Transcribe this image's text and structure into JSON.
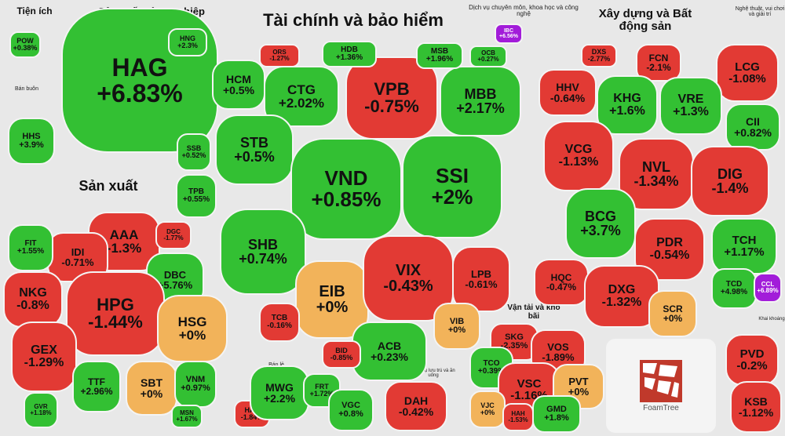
{
  "colors": {
    "green": "#33c033",
    "red": "#e23a34",
    "orange": "#f2b35a",
    "purple": "#a21cd9",
    "blue": "#3a9be0"
  },
  "sectors": [
    {
      "id": "tien-ich",
      "label": "Tiện ích"
    },
    {
      "id": "san-xuat-nong-nghiep",
      "label": "Sản xuất nông nghiệp"
    },
    {
      "id": "tai-chinh",
      "label": "Tài chính và bảo hiểm"
    },
    {
      "id": "dich-vu",
      "label": "Dịch vụ chuyên môn, khoa học và công nghệ"
    },
    {
      "id": "xay-dung",
      "label": "Xây dựng và Bất động sản"
    },
    {
      "id": "nghe-thuat",
      "label": "Nghệ thuật, vui chơi và giải trí"
    },
    {
      "id": "ban-buon",
      "label": "Bán buôn"
    },
    {
      "id": "san-xuat",
      "label": "Sản xuất"
    },
    {
      "id": "van-tai",
      "label": "Vận tải và kho bãi"
    },
    {
      "id": "ban-le",
      "label": "Bán lẻ"
    },
    {
      "id": "dich-vu-luu-tru",
      "label": "Dịch vụ lưu trú và ăn uống"
    },
    {
      "id": "khai-khoang",
      "label": "Khai khoáng"
    }
  ],
  "tickers": [
    {
      "t": "HAG",
      "p": "+6.83%",
      "c": "green"
    },
    {
      "t": "POW",
      "p": "+0.38%",
      "c": "green"
    },
    {
      "t": "HNG",
      "p": "+2.3%",
      "c": "green"
    },
    {
      "t": "HHS",
      "p": "+3.9%",
      "c": "green"
    },
    {
      "t": "HCM",
      "p": "+0.5%",
      "c": "green"
    },
    {
      "t": "CTG",
      "p": "+2.02%",
      "c": "green"
    },
    {
      "t": "VPB",
      "p": "-0.75%",
      "c": "red"
    },
    {
      "t": "MBB",
      "p": "+2.17%",
      "c": "green"
    },
    {
      "t": "HDB",
      "p": "+1.36%",
      "c": "green"
    },
    {
      "t": "MSB",
      "p": "+1.96%",
      "c": "green"
    },
    {
      "t": "ORS",
      "p": "-1.27%",
      "c": "red"
    },
    {
      "t": "OCB",
      "p": "+0.27%",
      "c": "green"
    },
    {
      "t": "STB",
      "p": "+0.5%",
      "c": "green"
    },
    {
      "t": "SSB",
      "p": "+0.52%",
      "c": "green"
    },
    {
      "t": "TPB",
      "p": "+0.55%",
      "c": "green"
    },
    {
      "t": "VND",
      "p": "+0.85%",
      "c": "green"
    },
    {
      "t": "SSI",
      "p": "+2%",
      "c": "green"
    },
    {
      "t": "SHB",
      "p": "+0.74%",
      "c": "green"
    },
    {
      "t": "EIB",
      "p": "+0%",
      "c": "orange"
    },
    {
      "t": "VIX",
      "p": "-0.43%",
      "c": "red"
    },
    {
      "t": "LPB",
      "p": "-0.61%",
      "c": "red"
    },
    {
      "t": "VIB",
      "p": "+0%",
      "c": "orange"
    },
    {
      "t": "TCB",
      "p": "-0.16%",
      "c": "red"
    },
    {
      "t": "ACB",
      "p": "+0.23%",
      "c": "green"
    },
    {
      "t": "BID",
      "p": "-0.85%",
      "c": "red"
    },
    {
      "t": "IBC",
      "p": "+6.56%",
      "c": "purple"
    },
    {
      "t": "DXS",
      "p": "-2.77%",
      "c": "red"
    },
    {
      "t": "FCN",
      "p": "-2.1%",
      "c": "red"
    },
    {
      "t": "LCG",
      "p": "-1.08%",
      "c": "red"
    },
    {
      "t": "HHV",
      "p": "-0.64%",
      "c": "red"
    },
    {
      "t": "KHG",
      "p": "+1.6%",
      "c": "green"
    },
    {
      "t": "VRE",
      "p": "+1.3%",
      "c": "green"
    },
    {
      "t": "CII",
      "p": "+0.82%",
      "c": "green"
    },
    {
      "t": "VCG",
      "p": "-1.13%",
      "c": "red"
    },
    {
      "t": "NVL",
      "p": "-1.34%",
      "c": "red"
    },
    {
      "t": "DIG",
      "p": "-1.4%",
      "c": "red"
    },
    {
      "t": "BCG",
      "p": "+3.7%",
      "c": "green"
    },
    {
      "t": "PDR",
      "p": "-0.54%",
      "c": "red"
    },
    {
      "t": "TCH",
      "p": "+1.17%",
      "c": "green"
    },
    {
      "t": "HQC",
      "p": "-0.47%",
      "c": "red"
    },
    {
      "t": "DXG",
      "p": "-1.32%",
      "c": "red"
    },
    {
      "t": "SCR",
      "p": "+0%",
      "c": "orange"
    },
    {
      "t": "TCD",
      "p": "+4.98%",
      "c": "green"
    },
    {
      "t": "CCL",
      "p": "+6.89%",
      "c": "purple"
    },
    {
      "t": "AAA",
      "p": "-1.3%",
      "c": "red"
    },
    {
      "t": "IDI",
      "p": "-0.71%",
      "c": "red"
    },
    {
      "t": "DGC",
      "p": "-1.77%",
      "c": "red"
    },
    {
      "t": "FIT",
      "p": "+1.55%",
      "c": "green"
    },
    {
      "t": "NKG",
      "p": "-0.8%",
      "c": "red"
    },
    {
      "t": "DBC",
      "p": "+5.76%",
      "c": "green"
    },
    {
      "t": "HPG",
      "p": "-1.44%",
      "c": "red"
    },
    {
      "t": "HSG",
      "p": "+0%",
      "c": "orange"
    },
    {
      "t": "GEX",
      "p": "-1.29%",
      "c": "red"
    },
    {
      "t": "TTF",
      "p": "+2.96%",
      "c": "green"
    },
    {
      "t": "SBT",
      "p": "+0%",
      "c": "orange"
    },
    {
      "t": "VNM",
      "p": "+0.97%",
      "c": "green"
    },
    {
      "t": "MSN",
      "p": "+1.67%",
      "c": "green"
    },
    {
      "t": "GVR",
      "p": "+1.18%",
      "c": "green"
    },
    {
      "t": "HAX",
      "p": "-1.84%",
      "c": "red"
    },
    {
      "t": "MWG",
      "p": "+2.2%",
      "c": "green"
    },
    {
      "t": "FRT",
      "p": "+1.72%",
      "c": "green"
    },
    {
      "t": "VGC",
      "p": "+0.8%",
      "c": "green"
    },
    {
      "t": "DAH",
      "p": "-0.42%",
      "c": "red"
    },
    {
      "t": "SKG",
      "p": "-2.35%",
      "c": "red"
    },
    {
      "t": "VOS",
      "p": "-1.89%",
      "c": "red"
    },
    {
      "t": "TCO",
      "p": "+0.39%",
      "c": "green"
    },
    {
      "t": "VSC",
      "p": "-1.16%",
      "c": "red"
    },
    {
      "t": "PVT",
      "p": "+0%",
      "c": "orange"
    },
    {
      "t": "VJC",
      "p": "+0%",
      "c": "orange"
    },
    {
      "t": "HAH",
      "p": "-1.53%",
      "c": "red"
    },
    {
      "t": "GMD",
      "p": "+1.8%",
      "c": "green"
    },
    {
      "t": "PVD",
      "p": "-0.2%",
      "c": "red"
    },
    {
      "t": "KSB",
      "p": "-1.12%",
      "c": "red"
    }
  ],
  "foamtree": {
    "label": "FoamTree"
  }
}
